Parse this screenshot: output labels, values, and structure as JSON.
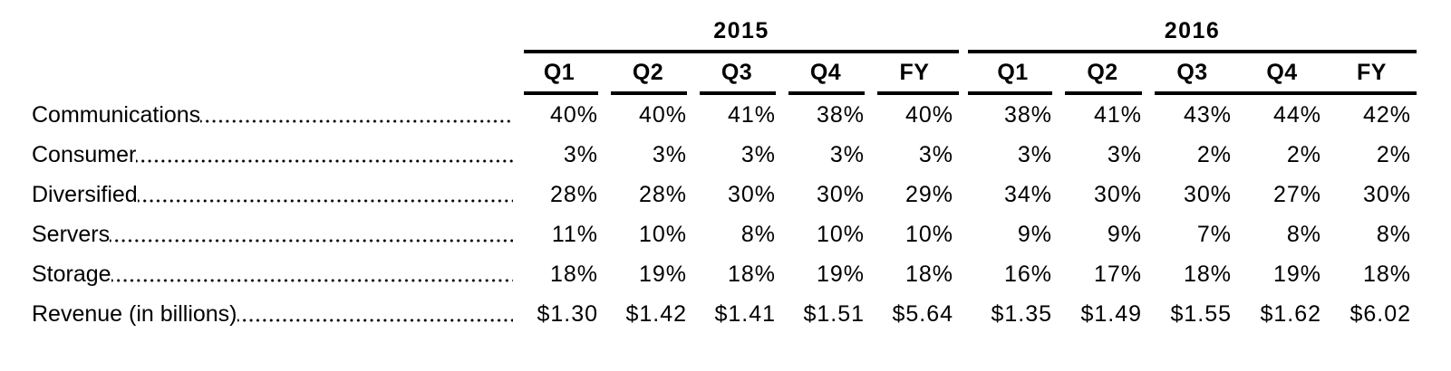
{
  "style": {
    "text_color": "#000000",
    "background_color": "#ffffff",
    "rule_color": "#000000"
  },
  "table": {
    "year_groups": [
      {
        "label": "2015",
        "columns": [
          "Q1",
          "Q2",
          "Q3",
          "Q4",
          "FY"
        ]
      },
      {
        "label": "2016",
        "columns": [
          "Q1",
          "Q2",
          "Q3",
          "Q4",
          "FY"
        ]
      }
    ],
    "rows": [
      {
        "label": "Communications",
        "v2015": [
          "40%",
          "40%",
          "41%",
          "38%",
          "40%"
        ],
        "v2016": [
          "38%",
          "41%",
          "43%",
          "44%",
          "42%"
        ]
      },
      {
        "label": "Consumer",
        "v2015": [
          "3%",
          "3%",
          "3%",
          "3%",
          "3%"
        ],
        "v2016": [
          "3%",
          "3%",
          "2%",
          "2%",
          "2%"
        ]
      },
      {
        "label": "Diversified",
        "v2015": [
          "28%",
          "28%",
          "30%",
          "30%",
          "29%"
        ],
        "v2016": [
          "34%",
          "30%",
          "30%",
          "27%",
          "30%"
        ]
      },
      {
        "label": "Servers",
        "v2015": [
          "11%",
          "10%",
          "8%",
          "10%",
          "10%"
        ],
        "v2016": [
          "9%",
          "9%",
          "7%",
          "8%",
          "8%"
        ]
      },
      {
        "label": "Storage",
        "v2015": [
          "18%",
          "19%",
          "18%",
          "19%",
          "18%"
        ],
        "v2016": [
          "16%",
          "17%",
          "18%",
          "19%",
          "18%"
        ]
      },
      {
        "label": "Revenue (in billions)",
        "v2015": [
          "$1.30",
          "$1.42",
          "$1.41",
          "$1.51",
          "$5.64"
        ],
        "v2016": [
          "$1.35",
          "$1.49",
          "$1.55",
          "$1.62",
          "$6.02"
        ]
      }
    ]
  },
  "chart_data": {
    "type": "table",
    "title": "",
    "column_groups": [
      {
        "label": "2015",
        "columns": [
          "Q1",
          "Q2",
          "Q3",
          "Q4",
          "FY"
        ]
      },
      {
        "label": "2016",
        "columns": [
          "Q1",
          "Q2",
          "Q3",
          "Q4",
          "FY"
        ]
      }
    ],
    "rows": [
      {
        "label": "Communications",
        "unit": "%",
        "y2015": [
          40,
          40,
          41,
          38,
          40
        ],
        "y2016": [
          38,
          41,
          43,
          44,
          42
        ]
      },
      {
        "label": "Consumer",
        "unit": "%",
        "y2015": [
          3,
          3,
          3,
          3,
          3
        ],
        "y2016": [
          3,
          3,
          2,
          2,
          2
        ]
      },
      {
        "label": "Diversified",
        "unit": "%",
        "y2015": [
          28,
          28,
          30,
          30,
          29
        ],
        "y2016": [
          34,
          30,
          30,
          27,
          30
        ]
      },
      {
        "label": "Servers",
        "unit": "%",
        "y2015": [
          11,
          10,
          8,
          10,
          10
        ],
        "y2016": [
          9,
          9,
          7,
          8,
          8
        ]
      },
      {
        "label": "Storage",
        "unit": "%",
        "y2015": [
          18,
          19,
          18,
          19,
          18
        ],
        "y2016": [
          16,
          17,
          18,
          19,
          18
        ]
      },
      {
        "label": "Revenue (in billions)",
        "unit": "$ billions",
        "y2015": [
          1.3,
          1.42,
          1.41,
          1.51,
          5.64
        ],
        "y2016": [
          1.35,
          1.49,
          1.55,
          1.62,
          6.02
        ]
      }
    ]
  }
}
